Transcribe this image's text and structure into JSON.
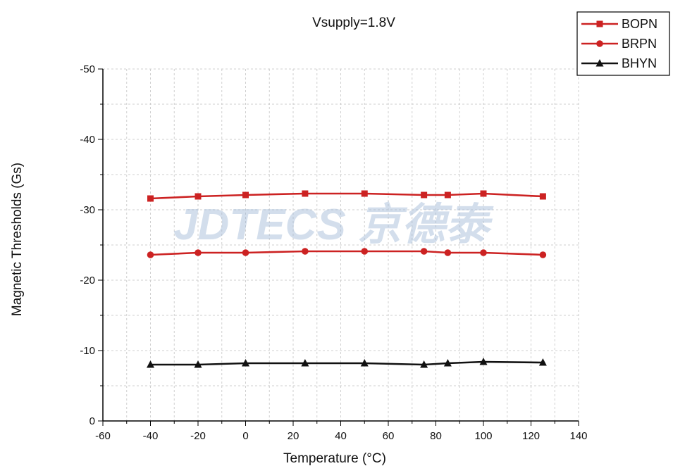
{
  "chart_data": {
    "type": "line",
    "title": "Vsupply=1.8V",
    "xlabel": "Temperature (°C)",
    "ylabel": "Magnetic Thresholds (Gs)",
    "xlim": [
      -60,
      140
    ],
    "ylim": [
      0,
      -50
    ],
    "xticks": [
      -60,
      -40,
      -20,
      0,
      20,
      40,
      60,
      80,
      100,
      120,
      140
    ],
    "yticks": [
      0,
      -10,
      -20,
      -30,
      -40,
      -50
    ],
    "grid": true,
    "legend_position": "top-right",
    "watermark": "JDTECS 京德泰",
    "x": [
      -40,
      -20,
      0,
      25,
      50,
      75,
      85,
      100,
      125
    ],
    "series": [
      {
        "name": "BOPN",
        "color": "#cc2222",
        "marker": "square",
        "values": [
          -31.6,
          -31.9,
          -32.1,
          -32.3,
          -32.3,
          -32.1,
          -32.1,
          -32.3,
          -31.9
        ]
      },
      {
        "name": "BRPN",
        "color": "#cc2222",
        "marker": "circle",
        "values": [
          -23.6,
          -23.9,
          -23.9,
          -24.1,
          -24.1,
          -24.1,
          -23.9,
          -23.9,
          -23.6
        ]
      },
      {
        "name": "BHYN",
        "color": "#111111",
        "marker": "triangle",
        "values": [
          -8.0,
          -8.0,
          -8.2,
          -8.2,
          -8.2,
          -8.0,
          -8.2,
          -8.4,
          -8.3
        ]
      }
    ]
  }
}
